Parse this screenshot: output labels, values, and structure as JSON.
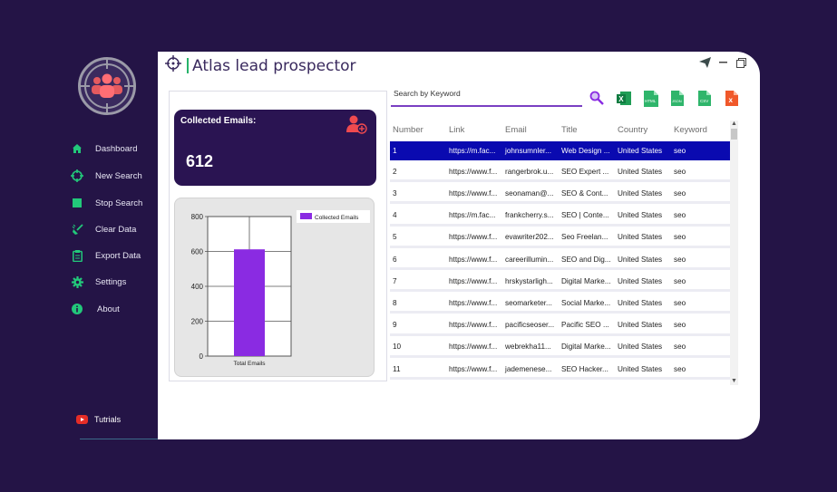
{
  "app": {
    "title": "Atlas lead prospector"
  },
  "nav": [
    {
      "label": "Dashboard",
      "icon": "home-icon"
    },
    {
      "label": "New Search",
      "icon": "crosshair-icon"
    },
    {
      "label": "Stop Search",
      "icon": "stop-icon"
    },
    {
      "label": "Clear Data",
      "icon": "broom-icon"
    },
    {
      "label": "Export Data",
      "icon": "clipboard-icon"
    },
    {
      "label": "Settings",
      "icon": "gear-icon"
    },
    {
      "label": "About",
      "icon": "info-icon"
    }
  ],
  "tutorials": {
    "label": "Tutrials"
  },
  "stats": {
    "label": "Collected Emails:",
    "value": "612"
  },
  "search": {
    "label": "Search by Keyword",
    "value": ""
  },
  "export_icons": [
    "excel-icon",
    "html-icon",
    "json-icon",
    "csv-icon",
    "txt-icon",
    "delete-icon"
  ],
  "colors": {
    "accent": "#8a2be2",
    "sidebar_bg": "#241446",
    "card_bg": "#2a1452",
    "selected_row": "#0a0ab0",
    "nav_icon": "#22c87a"
  },
  "table": {
    "columns": [
      "Number",
      "Link",
      "Email",
      "Title",
      "Country",
      "Keyword"
    ],
    "rows": [
      [
        "1",
        "https://m.fac...",
        "johnsumnler...",
        "Web Design ...",
        "United States",
        "seo"
      ],
      [
        "2",
        "https://www.f...",
        "rangerbrok.u...",
        "SEO Expert ...",
        "United States",
        "seo"
      ],
      [
        "3",
        "https://www.f...",
        "seonaman@...",
        "SEO & Cont...",
        "United States",
        "seo"
      ],
      [
        "4",
        "https://m.fac...",
        "frankcherry.s...",
        "SEO | Conte...",
        "United States",
        "seo"
      ],
      [
        "5",
        "https://www.f...",
        "evawriter202...",
        "Seo Freelan...",
        "United States",
        "seo"
      ],
      [
        "6",
        "https://www.f...",
        "careerillumin...",
        "SEO and Dig...",
        "United States",
        "seo"
      ],
      [
        "7",
        "https://www.f...",
        "hrskystarligh...",
        "Digital Marke...",
        "United States",
        "seo"
      ],
      [
        "8",
        "https://www.f...",
        "seomarketer...",
        "Social Marke...",
        "United States",
        "seo"
      ],
      [
        "9",
        "https://www.f...",
        "pacificseoser...",
        "Pacific SEO ...",
        "United States",
        "seo"
      ],
      [
        "10",
        "https://www.f...",
        "webrekha11...",
        "Digital Marke...",
        "United States",
        "seo"
      ],
      [
        "11",
        "https://www.f...",
        "jademenese...",
        "SEO Hacker...",
        "United States",
        "seo"
      ]
    ],
    "selected_index": 0
  },
  "chart_data": {
    "type": "bar",
    "categories": [
      "Total Emails"
    ],
    "series": [
      {
        "name": "Collected Emails",
        "values": [
          612
        ]
      }
    ],
    "ylim": [
      0,
      800
    ],
    "yticks": [
      "0",
      "200",
      "400",
      "600",
      "800"
    ],
    "grid": true,
    "legend": "top-right"
  }
}
